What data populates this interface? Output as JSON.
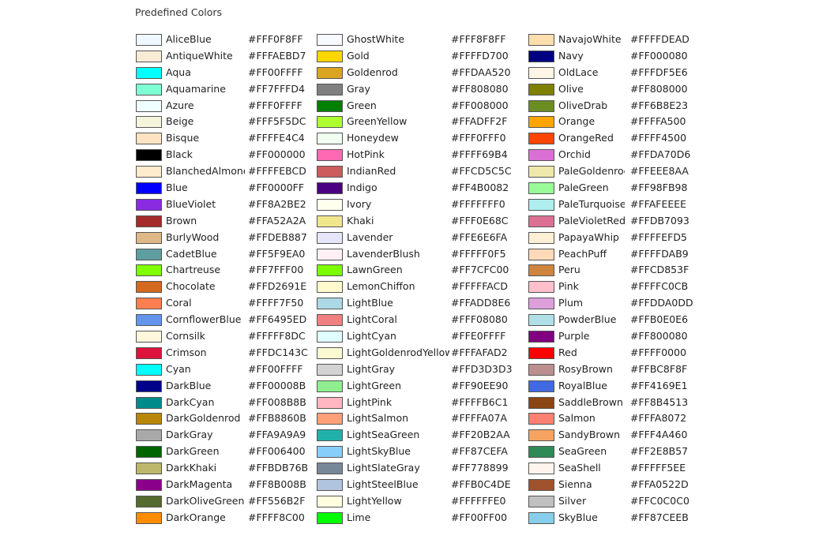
{
  "title": "Predefined Colors",
  "columns": [
    [
      {
        "name": "AliceBlue",
        "hex": "#FFF0F8FF",
        "color": "#F0F8FF"
      },
      {
        "name": "AntiqueWhite",
        "hex": "#FFFAEBD7",
        "color": "#FAEBD7"
      },
      {
        "name": "Aqua",
        "hex": "#FF00FFFF",
        "color": "#00FFFF"
      },
      {
        "name": "Aquamarine",
        "hex": "#FF7FFFD4",
        "color": "#7FFFD4"
      },
      {
        "name": "Azure",
        "hex": "#FFF0FFFF",
        "color": "#F0FFFF"
      },
      {
        "name": "Beige",
        "hex": "#FFF5F5DC",
        "color": "#F5F5DC"
      },
      {
        "name": "Bisque",
        "hex": "#FFFFE4C4",
        "color": "#FFE4C4"
      },
      {
        "name": "Black",
        "hex": "#FF000000",
        "color": "#000000"
      },
      {
        "name": "BlanchedAlmond",
        "hex": "#FFFFEBCD",
        "color": "#FFEBCD"
      },
      {
        "name": "Blue",
        "hex": "#FF0000FF",
        "color": "#0000FF"
      },
      {
        "name": "BlueViolet",
        "hex": "#FF8A2BE2",
        "color": "#8A2BE2"
      },
      {
        "name": "Brown",
        "hex": "#FFA52A2A",
        "color": "#A52A2A"
      },
      {
        "name": "BurlyWood",
        "hex": "#FFDEB887",
        "color": "#DEB887"
      },
      {
        "name": "CadetBlue",
        "hex": "#FF5F9EA0",
        "color": "#5F9EA0"
      },
      {
        "name": "Chartreuse",
        "hex": "#FF7FFF00",
        "color": "#7FFF00"
      },
      {
        "name": "Chocolate",
        "hex": "#FFD2691E",
        "color": "#D2691E"
      },
      {
        "name": "Coral",
        "hex": "#FFFF7F50",
        "color": "#FF7F50"
      },
      {
        "name": "CornflowerBlue",
        "hex": "#FF6495ED",
        "color": "#6495ED"
      },
      {
        "name": "Cornsilk",
        "hex": "#FFFFF8DC",
        "color": "#FFF8DC"
      },
      {
        "name": "Crimson",
        "hex": "#FFDC143C",
        "color": "#DC143C"
      },
      {
        "name": "Cyan",
        "hex": "#FF00FFFF",
        "color": "#00FFFF"
      },
      {
        "name": "DarkBlue",
        "hex": "#FF00008B",
        "color": "#00008B"
      },
      {
        "name": "DarkCyan",
        "hex": "#FF008B8B",
        "color": "#008B8B"
      },
      {
        "name": "DarkGoldenrod",
        "hex": "#FFB8860B",
        "color": "#B8860B"
      },
      {
        "name": "DarkGray",
        "hex": "#FFA9A9A9",
        "color": "#A9A9A9"
      },
      {
        "name": "DarkGreen",
        "hex": "#FF006400",
        "color": "#006400"
      },
      {
        "name": "DarkKhaki",
        "hex": "#FFBDB76B",
        "color": "#BDB76B"
      },
      {
        "name": "DarkMagenta",
        "hex": "#FF8B008B",
        "color": "#8B008B"
      },
      {
        "name": "DarkOliveGreen",
        "hex": "#FF556B2F",
        "color": "#556B2F"
      },
      {
        "name": "DarkOrange",
        "hex": "#FFFF8C00",
        "color": "#FF8C00"
      }
    ],
    [
      {
        "name": "GhostWhite",
        "hex": "#FFF8F8FF",
        "color": "#F8F8FF"
      },
      {
        "name": "Gold",
        "hex": "#FFFFD700",
        "color": "#FFD700"
      },
      {
        "name": "Goldenrod",
        "hex": "#FFDAA520",
        "color": "#DAA520"
      },
      {
        "name": "Gray",
        "hex": "#FF808080",
        "color": "#808080"
      },
      {
        "name": "Green",
        "hex": "#FF008000",
        "color": "#008000"
      },
      {
        "name": "GreenYellow",
        "hex": "#FFADFF2F",
        "color": "#ADFF2F"
      },
      {
        "name": "Honeydew",
        "hex": "#FFF0FFF0",
        "color": "#F0FFF0"
      },
      {
        "name": "HotPink",
        "hex": "#FFFF69B4",
        "color": "#FF69B4"
      },
      {
        "name": "IndianRed",
        "hex": "#FFCD5C5C",
        "color": "#CD5C5C"
      },
      {
        "name": "Indigo",
        "hex": "#FF4B0082",
        "color": "#4B0082"
      },
      {
        "name": "Ivory",
        "hex": "#FFFFFFF0",
        "color": "#FFFFF0"
      },
      {
        "name": "Khaki",
        "hex": "#FFF0E68C",
        "color": "#F0E68C"
      },
      {
        "name": "Lavender",
        "hex": "#FFE6E6FA",
        "color": "#E6E6FA"
      },
      {
        "name": "LavenderBlush",
        "hex": "#FFFFF0F5",
        "color": "#FFF0F5"
      },
      {
        "name": "LawnGreen",
        "hex": "#FF7CFC00",
        "color": "#7CFC00"
      },
      {
        "name": "LemonChiffon",
        "hex": "#FFFFFACD",
        "color": "#FFFACD"
      },
      {
        "name": "LightBlue",
        "hex": "#FFADD8E6",
        "color": "#ADD8E6"
      },
      {
        "name": "LightCoral",
        "hex": "#FFF08080",
        "color": "#F08080"
      },
      {
        "name": "LightCyan",
        "hex": "#FFE0FFFF",
        "color": "#E0FFFF"
      },
      {
        "name": "LightGoldenrodYellow",
        "hex": "#FFFAFAD2",
        "color": "#FAFAD2"
      },
      {
        "name": "LightGray",
        "hex": "#FFD3D3D3",
        "color": "#D3D3D3"
      },
      {
        "name": "LightGreen",
        "hex": "#FF90EE90",
        "color": "#90EE90"
      },
      {
        "name": "LightPink",
        "hex": "#FFFFB6C1",
        "color": "#FFB6C1"
      },
      {
        "name": "LightSalmon",
        "hex": "#FFFFA07A",
        "color": "#FFA07A"
      },
      {
        "name": "LightSeaGreen",
        "hex": "#FF20B2AA",
        "color": "#20B2AA"
      },
      {
        "name": "LightSkyBlue",
        "hex": "#FF87CEFA",
        "color": "#87CEFA"
      },
      {
        "name": "LightSlateGray",
        "hex": "#FF778899",
        "color": "#778899"
      },
      {
        "name": "LightSteelBlue",
        "hex": "#FFB0C4DE",
        "color": "#B0C4DE"
      },
      {
        "name": "LightYellow",
        "hex": "#FFFFFFE0",
        "color": "#FFFFE0"
      },
      {
        "name": "Lime",
        "hex": "#FF00FF00",
        "color": "#00FF00"
      }
    ],
    [
      {
        "name": "NavajoWhite",
        "hex": "#FFFFDEAD",
        "color": "#FFDEAD"
      },
      {
        "name": "Navy",
        "hex": "#FF000080",
        "color": "#000080"
      },
      {
        "name": "OldLace",
        "hex": "#FFFDF5E6",
        "color": "#FDF5E6"
      },
      {
        "name": "Olive",
        "hex": "#FF808000",
        "color": "#808000"
      },
      {
        "name": "OliveDrab",
        "hex": "#FF6B8E23",
        "color": "#6B8E23"
      },
      {
        "name": "Orange",
        "hex": "#FFFFA500",
        "color": "#FFA500"
      },
      {
        "name": "OrangeRed",
        "hex": "#FFFF4500",
        "color": "#FF4500"
      },
      {
        "name": "Orchid",
        "hex": "#FFDA70D6",
        "color": "#DA70D6"
      },
      {
        "name": "PaleGoldenrod",
        "hex": "#FFEEE8AA",
        "color": "#EEE8AA"
      },
      {
        "name": "PaleGreen",
        "hex": "#FF98FB98",
        "color": "#98FB98"
      },
      {
        "name": "PaleTurquoise",
        "hex": "#FFAFEEEE",
        "color": "#AFEEEE"
      },
      {
        "name": "PaleVioletRed",
        "hex": "#FFDB7093",
        "color": "#DB7093"
      },
      {
        "name": "PapayaWhip",
        "hex": "#FFFFEFD5",
        "color": "#FFEFD5"
      },
      {
        "name": "PeachPuff",
        "hex": "#FFFFDAB9",
        "color": "#FFDAB9"
      },
      {
        "name": "Peru",
        "hex": "#FFCD853F",
        "color": "#CD853F"
      },
      {
        "name": "Pink",
        "hex": "#FFFFC0CB",
        "color": "#FFC0CB"
      },
      {
        "name": "Plum",
        "hex": "#FFDDA0DD",
        "color": "#DDA0DD"
      },
      {
        "name": "PowderBlue",
        "hex": "#FFB0E0E6",
        "color": "#B0E0E6"
      },
      {
        "name": "Purple",
        "hex": "#FF800080",
        "color": "#800080"
      },
      {
        "name": "Red",
        "hex": "#FFFF0000",
        "color": "#FF0000"
      },
      {
        "name": "RosyBrown",
        "hex": "#FFBC8F8F",
        "color": "#BC8F8F"
      },
      {
        "name": "RoyalBlue",
        "hex": "#FF4169E1",
        "color": "#4169E1"
      },
      {
        "name": "SaddleBrown",
        "hex": "#FF8B4513",
        "color": "#8B4513"
      },
      {
        "name": "Salmon",
        "hex": "#FFFA8072",
        "color": "#FA8072"
      },
      {
        "name": "SandyBrown",
        "hex": "#FFF4A460",
        "color": "#F4A460"
      },
      {
        "name": "SeaGreen",
        "hex": "#FF2E8B57",
        "color": "#2E8B57"
      },
      {
        "name": "SeaShell",
        "hex": "#FFFFF5EE",
        "color": "#FFF5EE"
      },
      {
        "name": "Sienna",
        "hex": "#FFA0522D",
        "color": "#A0522D"
      },
      {
        "name": "Silver",
        "hex": "#FFC0C0C0",
        "color": "#C0C0C0"
      },
      {
        "name": "SkyBlue",
        "hex": "#FF87CEEB",
        "color": "#87CEEB"
      }
    ]
  ]
}
